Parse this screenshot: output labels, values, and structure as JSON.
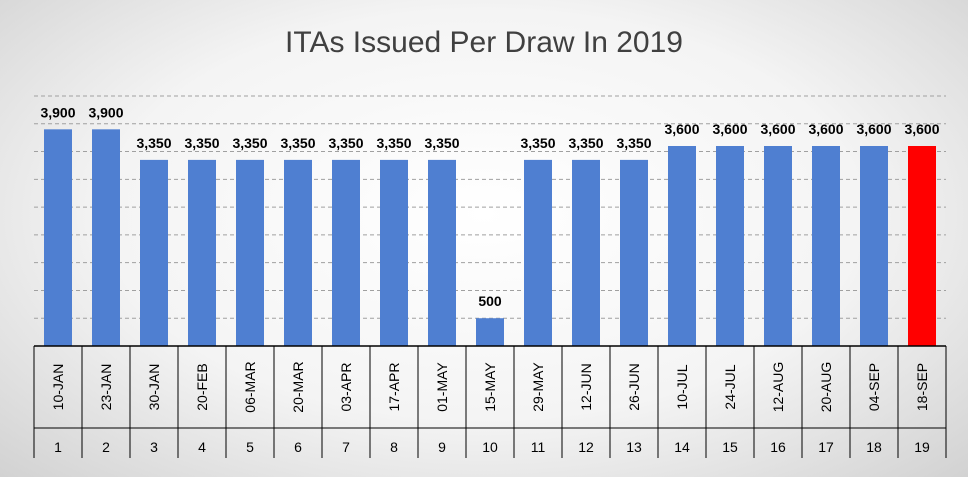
{
  "chart_data": {
    "type": "bar",
    "title": "ITAs Issued Per Draw In 2019",
    "categories": [
      "10-JAN",
      "23-JAN",
      "30-JAN",
      "20-FEB",
      "06-MAR",
      "20-MAR",
      "03-APR",
      "17-APR",
      "01-MAY",
      "15-MAY",
      "29-MAY",
      "12-JUN",
      "26-JUN",
      "10-JUL",
      "24-JUL",
      "12-AUG",
      "20-AUG",
      "04-SEP",
      "18-SEP"
    ],
    "draw_numbers": [
      "1",
      "2",
      "3",
      "4",
      "5",
      "6",
      "7",
      "8",
      "9",
      "10",
      "11",
      "12",
      "13",
      "14",
      "15",
      "16",
      "17",
      "18",
      "19"
    ],
    "values": [
      3900,
      3900,
      3350,
      3350,
      3350,
      3350,
      3350,
      3350,
      3350,
      500,
      3350,
      3350,
      3350,
      3600,
      3600,
      3600,
      3600,
      3600,
      3600
    ],
    "value_labels": [
      "3,900",
      "3,900",
      "3,350",
      "3,350",
      "3,350",
      "3,350",
      "3,350",
      "3,350",
      "3,350",
      "500",
      "3,350",
      "3,350",
      "3,350",
      "3,600",
      "3,600",
      "3,600",
      "3,600",
      "3,600",
      "3,600"
    ],
    "bar_color": "#4f7fd1",
    "highlight_color": "#ff0000",
    "highlight_index": 18,
    "ylim": [
      0,
      4500
    ],
    "grid": true,
    "gridline_style": "dashed"
  }
}
